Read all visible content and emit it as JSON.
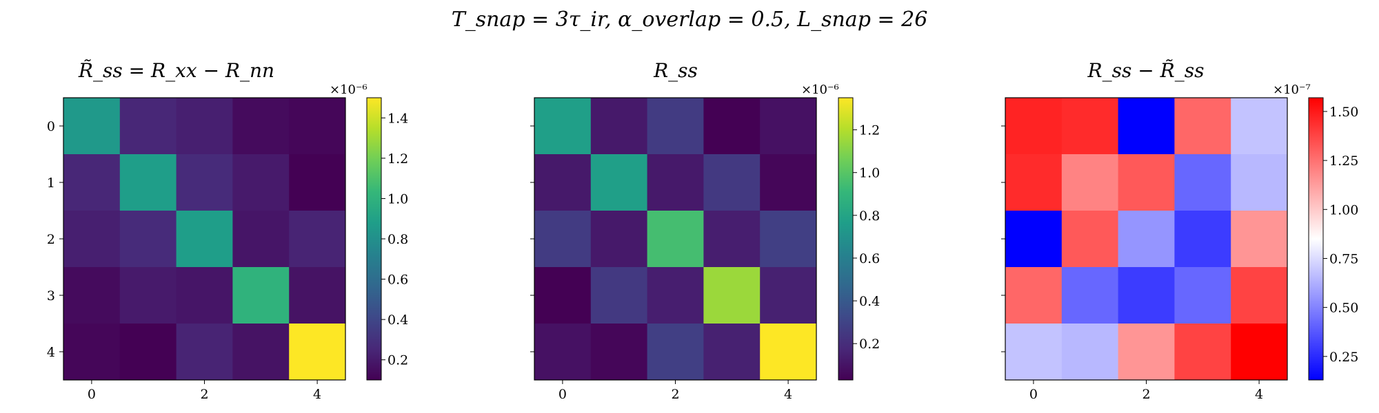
{
  "figure": {
    "suptitle": "T_snap = 3τ_ir,   α_overlap = 0.5,   L_snap = 26"
  },
  "colors": {
    "viridis": [
      "#440154",
      "#482878",
      "#3e4989",
      "#31688e",
      "#26828e",
      "#1f9e89",
      "#35b779",
      "#6ece58",
      "#b5de2b",
      "#fde725"
    ],
    "bwr": [
      "#0000ff",
      "#ffffff",
      "#ff0000"
    ]
  },
  "chart_data": [
    {
      "type": "heatmap",
      "title": "R̃_ss = R_xx − R_nn",
      "colormap": "viridis",
      "x_ticks": [
        "0",
        "2",
        "4"
      ],
      "y_ticks": [
        "0",
        "1",
        "2",
        "3",
        "4"
      ],
      "colorbar": {
        "range": [
          0.1,
          1.5
        ],
        "ticks": [
          "0.2",
          "0.4",
          "0.6",
          "0.8",
          "1.0",
          "1.2",
          "1.4"
        ],
        "offset_label": "×10⁻⁶"
      },
      "values": [
        [
          0.85,
          0.25,
          0.22,
          0.14,
          0.12
        ],
        [
          0.25,
          0.88,
          0.27,
          0.2,
          0.1
        ],
        [
          0.22,
          0.27,
          0.88,
          0.18,
          0.24
        ],
        [
          0.14,
          0.2,
          0.18,
          1.0,
          0.17
        ],
        [
          0.12,
          0.1,
          0.24,
          0.17,
          1.5
        ]
      ]
    },
    {
      "type": "heatmap",
      "title": "R_ss",
      "colormap": "viridis",
      "x_ticks": [
        "0",
        "2",
        "4"
      ],
      "y_ticks": [],
      "colorbar": {
        "range": [
          0.03,
          1.35
        ],
        "ticks": [
          "0.2",
          "0.4",
          "0.6",
          "0.8",
          "1.0",
          "1.2"
        ],
        "offset_label": "×10⁻⁶"
      },
      "values": [
        [
          0.77,
          0.12,
          0.26,
          0.03,
          0.09
        ],
        [
          0.12,
          0.77,
          0.12,
          0.25,
          0.05
        ],
        [
          0.26,
          0.12,
          0.95,
          0.14,
          0.28
        ],
        [
          0.03,
          0.25,
          0.14,
          1.15,
          0.15
        ],
        [
          0.09,
          0.05,
          0.28,
          0.15,
          1.35
        ]
      ]
    },
    {
      "type": "heatmap",
      "title": "R_ss − R̃_ss",
      "colormap": "bwr",
      "x_ticks": [
        "0",
        "2",
        "4"
      ],
      "y_ticks": [],
      "colorbar": {
        "range": [
          0.13,
          1.57
        ],
        "ticks": [
          "0.25",
          "0.50",
          "0.75",
          "1.00",
          "1.25",
          "1.50"
        ],
        "offset_label": "×10⁻⁷"
      },
      "values": [
        [
          1.47,
          1.45,
          0.13,
          1.28,
          0.68
        ],
        [
          1.45,
          1.2,
          1.32,
          0.42,
          0.65
        ],
        [
          0.13,
          1.32,
          0.55,
          0.3,
          1.15
        ],
        [
          1.28,
          0.42,
          0.3,
          0.42,
          1.38
        ],
        [
          0.68,
          0.65,
          1.15,
          1.38,
          1.57
        ]
      ]
    }
  ]
}
